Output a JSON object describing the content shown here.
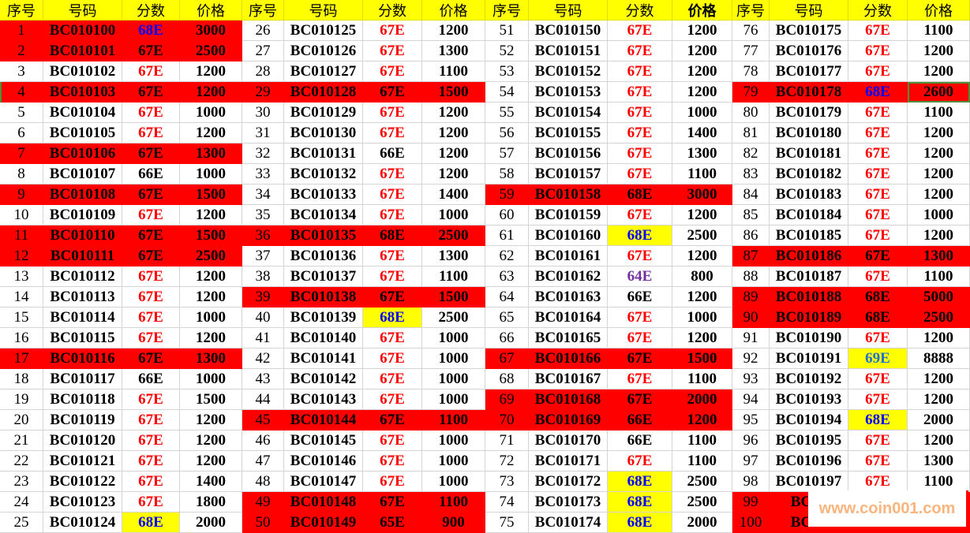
{
  "headers": [
    "序号",
    "号码",
    "分数",
    "价格"
  ],
  "bold_header_groups": [
    2
  ],
  "colors": {
    "red_fill": "#ff0000",
    "yellow_fill": "#ffff00",
    "67E": "#ff0000",
    "68E": "#0000ff",
    "66E": "#000000",
    "65E": "#000000",
    "64E": "#7030a0",
    "69E": "#1f6fd0",
    "selection": "#4f8f3a"
  },
  "groups": [
    [
      [
        1,
        "BC010100",
        "68E",
        3000,
        "rb"
      ],
      [
        2,
        "BC010101",
        "67E",
        2500,
        "r"
      ],
      [
        3,
        "BC010102",
        "67E",
        1200,
        ""
      ],
      [
        4,
        "BC010103",
        "67E",
        1200,
        "r"
      ],
      [
        5,
        "BC010104",
        "67E",
        1000,
        ""
      ],
      [
        6,
        "BC010105",
        "67E",
        1200,
        ""
      ],
      [
        7,
        "BC010106",
        "67E",
        1300,
        "r"
      ],
      [
        8,
        "BC010107",
        "66E",
        1000,
        ""
      ],
      [
        9,
        "BC010108",
        "67E",
        1500,
        "r"
      ],
      [
        10,
        "BC010109",
        "67E",
        1200,
        ""
      ],
      [
        11,
        "BC010110",
        "67E",
        1500,
        "r"
      ],
      [
        12,
        "BC010111",
        "67E",
        2500,
        "r"
      ],
      [
        13,
        "BC010112",
        "67E",
        1200,
        ""
      ],
      [
        14,
        "BC010113",
        "67E",
        1200,
        ""
      ],
      [
        15,
        "BC010114",
        "67E",
        1000,
        ""
      ],
      [
        16,
        "BC010115",
        "67E",
        1200,
        ""
      ],
      [
        17,
        "BC010116",
        "67E",
        1300,
        "r"
      ],
      [
        18,
        "BC010117",
        "66E",
        1000,
        ""
      ],
      [
        19,
        "BC010118",
        "67E",
        1500,
        ""
      ],
      [
        20,
        "BC010119",
        "67E",
        1200,
        ""
      ],
      [
        21,
        "BC010120",
        "67E",
        1200,
        ""
      ],
      [
        22,
        "BC010121",
        "67E",
        1200,
        ""
      ],
      [
        23,
        "BC010122",
        "67E",
        1400,
        ""
      ],
      [
        24,
        "BC010123",
        "67E",
        1800,
        ""
      ],
      [
        25,
        "BC010124",
        "68E",
        2000,
        "y"
      ]
    ],
    [
      [
        26,
        "BC010125",
        "67E",
        1200,
        ""
      ],
      [
        27,
        "BC010126",
        "67E",
        1300,
        ""
      ],
      [
        28,
        "BC010127",
        "67E",
        1100,
        ""
      ],
      [
        29,
        "BC010128",
        "67E",
        1500,
        "r"
      ],
      [
        30,
        "BC010129",
        "67E",
        1200,
        ""
      ],
      [
        31,
        "BC010130",
        "67E",
        1200,
        ""
      ],
      [
        32,
        "BC010131",
        "66E",
        1200,
        ""
      ],
      [
        33,
        "BC010132",
        "67E",
        1200,
        ""
      ],
      [
        34,
        "BC010133",
        "67E",
        1400,
        ""
      ],
      [
        35,
        "BC010134",
        "67E",
        1000,
        ""
      ],
      [
        36,
        "BC010135",
        "68E",
        2500,
        "r"
      ],
      [
        37,
        "BC010136",
        "67E",
        1300,
        ""
      ],
      [
        38,
        "BC010137",
        "67E",
        1100,
        ""
      ],
      [
        39,
        "BC010138",
        "67E",
        1500,
        "r"
      ],
      [
        40,
        "BC010139",
        "68E",
        2500,
        "y"
      ],
      [
        41,
        "BC010140",
        "67E",
        1000,
        ""
      ],
      [
        42,
        "BC010141",
        "67E",
        1000,
        ""
      ],
      [
        43,
        "BC010142",
        "67E",
        1000,
        ""
      ],
      [
        44,
        "BC010143",
        "67E",
        1000,
        ""
      ],
      [
        45,
        "BC010144",
        "67E",
        1100,
        "r"
      ],
      [
        46,
        "BC010145",
        "67E",
        1000,
        ""
      ],
      [
        47,
        "BC010146",
        "67E",
        1000,
        ""
      ],
      [
        48,
        "BC010147",
        "67E",
        1000,
        ""
      ],
      [
        49,
        "BC010148",
        "67E",
        1100,
        "r"
      ],
      [
        50,
        "BC010149",
        "65E",
        900,
        "r"
      ]
    ],
    [
      [
        51,
        "BC010150",
        "67E",
        1200,
        ""
      ],
      [
        52,
        "BC010151",
        "67E",
        1200,
        ""
      ],
      [
        53,
        "BC010152",
        "67E",
        1200,
        ""
      ],
      [
        54,
        "BC010153",
        "67E",
        1200,
        ""
      ],
      [
        55,
        "BC010154",
        "67E",
        1000,
        ""
      ],
      [
        56,
        "BC010155",
        "67E",
        1400,
        ""
      ],
      [
        57,
        "BC010156",
        "67E",
        1300,
        ""
      ],
      [
        58,
        "BC010157",
        "67E",
        1100,
        ""
      ],
      [
        59,
        "BC010158",
        "68E",
        3000,
        "r"
      ],
      [
        60,
        "BC010159",
        "67E",
        1200,
        ""
      ],
      [
        61,
        "BC010160",
        "68E",
        2500,
        "y"
      ],
      [
        62,
        "BC010161",
        "67E",
        1200,
        ""
      ],
      [
        63,
        "BC010162",
        "64E",
        800,
        ""
      ],
      [
        64,
        "BC010163",
        "66E",
        1200,
        ""
      ],
      [
        65,
        "BC010164",
        "67E",
        1000,
        ""
      ],
      [
        66,
        "BC010165",
        "67E",
        1200,
        ""
      ],
      [
        67,
        "BC010166",
        "67E",
        1500,
        "r"
      ],
      [
        68,
        "BC010167",
        "67E",
        1100,
        ""
      ],
      [
        69,
        "BC010168",
        "67E",
        2000,
        "r"
      ],
      [
        70,
        "BC010169",
        "66E",
        1200,
        "r"
      ],
      [
        71,
        "BC010170",
        "66E",
        1100,
        ""
      ],
      [
        72,
        "BC010171",
        "67E",
        1100,
        ""
      ],
      [
        73,
        "BC010172",
        "68E",
        2500,
        "y"
      ],
      [
        74,
        "BC010173",
        "68E",
        2500,
        "y"
      ],
      [
        75,
        "BC010174",
        "68E",
        2000,
        "y"
      ]
    ],
    [
      [
        76,
        "BC010175",
        "67E",
        1100,
        ""
      ],
      [
        77,
        "BC010176",
        "67E",
        1200,
        ""
      ],
      [
        78,
        "BC010177",
        "67E",
        1200,
        ""
      ],
      [
        79,
        "BC010178",
        "68E",
        2600,
        "rbs"
      ],
      [
        80,
        "BC010179",
        "67E",
        1100,
        ""
      ],
      [
        81,
        "BC010180",
        "67E",
        1200,
        ""
      ],
      [
        82,
        "BC010181",
        "67E",
        1200,
        ""
      ],
      [
        83,
        "BC010182",
        "67E",
        1200,
        ""
      ],
      [
        84,
        "BC010183",
        "67E",
        1200,
        ""
      ],
      [
        85,
        "BC010184",
        "67E",
        1000,
        ""
      ],
      [
        86,
        "BC010185",
        "67E",
        1200,
        ""
      ],
      [
        87,
        "BC010186",
        "67E",
        1300,
        "r"
      ],
      [
        88,
        "BC010187",
        "67E",
        1100,
        ""
      ],
      [
        89,
        "BC010188",
        "68E",
        5000,
        "r"
      ],
      [
        90,
        "BC010189",
        "68E",
        2500,
        "r"
      ],
      [
        91,
        "BC010190",
        "67E",
        1200,
        ""
      ],
      [
        92,
        "BC010191",
        "69E",
        8888,
        "y"
      ],
      [
        93,
        "BC010192",
        "67E",
        1200,
        ""
      ],
      [
        94,
        "BC010193",
        "67E",
        1200,
        ""
      ],
      [
        95,
        "BC010194",
        "68E",
        2000,
        "y"
      ],
      [
        96,
        "BC010195",
        "67E",
        1200,
        ""
      ],
      [
        97,
        "BC010196",
        "67E",
        1300,
        ""
      ],
      [
        98,
        "BC010197",
        "67E",
        1100,
        ""
      ],
      [
        99,
        "BC01",
        "",
        "",
        "r"
      ],
      [
        100,
        "BC01",
        "",
        "",
        "r"
      ]
    ]
  ],
  "watermark": "www.coin001.com"
}
